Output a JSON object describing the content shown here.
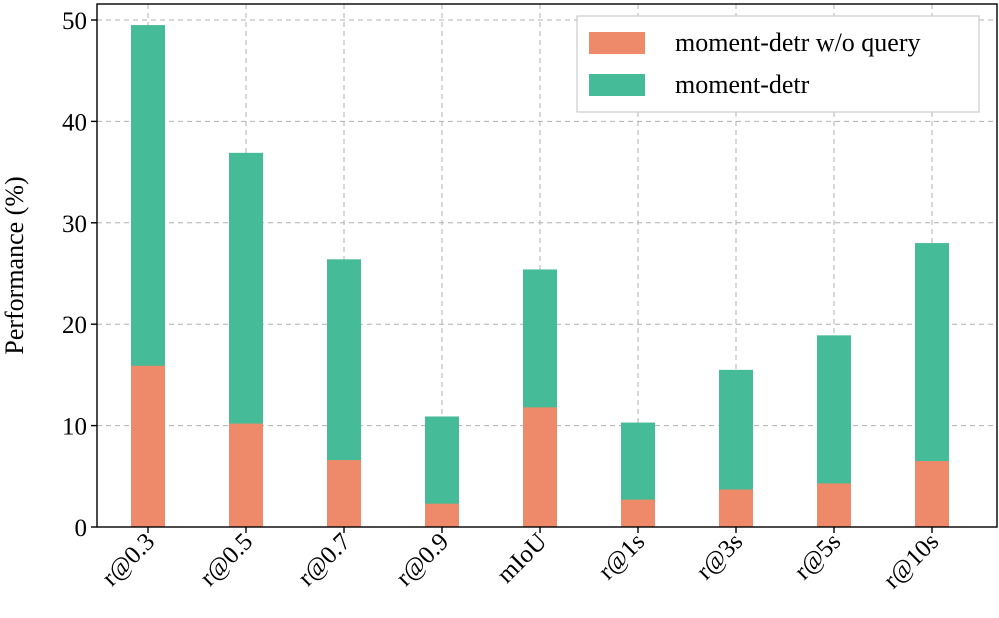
{
  "chart_data": {
    "type": "bar",
    "stacked": false,
    "overlay": true,
    "title": "",
    "xlabel": "",
    "ylabel": "Performance (%)",
    "ylim": [
      0,
      50
    ],
    "yticks": [
      0,
      10,
      20,
      30,
      40,
      50
    ],
    "grid": true,
    "legend_position": "top-right",
    "categories": [
      "r@0.3",
      "r@0.5",
      "r@0.7",
      "r@0.9",
      "mIoU",
      "r@1s",
      "r@3s",
      "r@5s",
      "r@10s"
    ],
    "series": [
      {
        "name": "moment-detr",
        "color": "#45bb97",
        "values": [
          49.5,
          36.9,
          26.4,
          10.9,
          25.4,
          10.3,
          15.5,
          18.9,
          28.0
        ]
      },
      {
        "name": "moment-detr w/o query",
        "color": "#ee8a69",
        "values": [
          15.9,
          10.2,
          6.6,
          2.3,
          11.8,
          2.7,
          3.7,
          4.3,
          6.5
        ]
      }
    ],
    "legend_order": [
      "moment-detr w/o query",
      "moment-detr"
    ]
  }
}
